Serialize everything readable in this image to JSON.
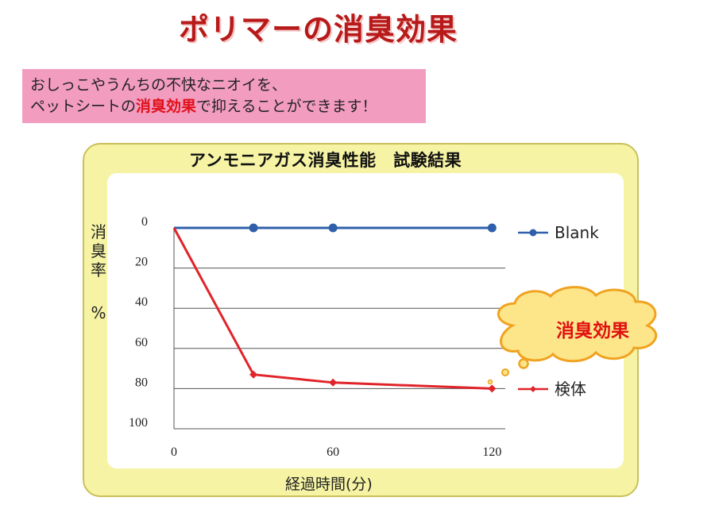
{
  "page": {
    "title": "ポリマーの消臭効果",
    "intro_line1": "おしっこやうんちの不快なニオイを、",
    "intro_line2_pre": "ペットシートの",
    "intro_line2_highlight": "消臭効果",
    "intro_line2_post": "で抑えることができます！"
  },
  "callout": {
    "text": "消臭効果"
  },
  "chart_data": {
    "type": "line",
    "title": "アンモニアガス消臭性能　試験結果",
    "xlabel": "経過時間(分)",
    "ylabel": "消臭率",
    "ylabel_unit": "%",
    "x": [
      0,
      30,
      60,
      120
    ],
    "x_ticks": [
      0,
      60,
      120
    ],
    "xlim": [
      0,
      125
    ],
    "ylim": [
      0,
      100
    ],
    "y_inverted": true,
    "y_ticks": [
      0,
      20,
      40,
      60,
      80,
      100
    ],
    "grid": true,
    "legend": "right",
    "series": [
      {
        "name": "Blank",
        "values": [
          0,
          0,
          0,
          0
        ],
        "color": "#2f5faa",
        "marker": "circle"
      },
      {
        "name": "検体",
        "values": [
          0,
          73,
          77,
          80
        ],
        "color": "#e0242a",
        "marker": "diamond"
      }
    ]
  }
}
